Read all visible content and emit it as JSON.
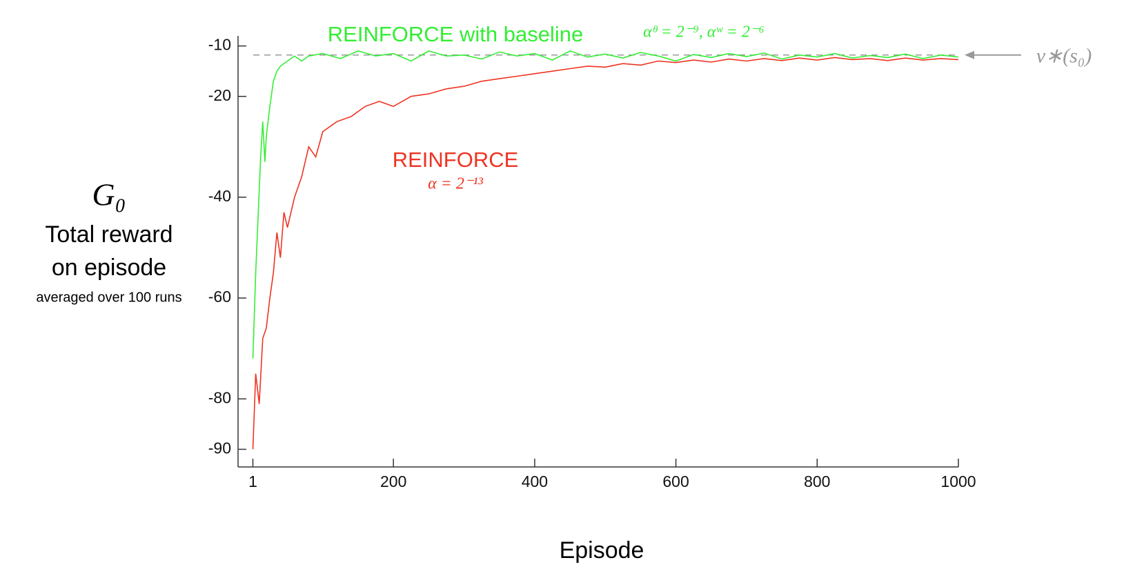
{
  "chart_data": {
    "type": "line",
    "y_label": {
      "symbol": "G₀",
      "lines": [
        "Total reward",
        "on episode"
      ],
      "note": "averaged over 100 runs"
    },
    "x_label": "Episode",
    "xlim": [
      -20,
      1000
    ],
    "ylim": [
      -93.5,
      -8
    ],
    "xticks": [
      1,
      200,
      400,
      600,
      800,
      1000
    ],
    "yticks": [
      -10,
      -20,
      -40,
      -60,
      -80,
      -90
    ],
    "reference_line": {
      "value": -11.8,
      "label": "v∗(s₀)",
      "color": "#999999"
    },
    "series": [
      {
        "name": "REINFORCE with baseline",
        "params": "αᶿ = 2⁻⁹,  αʷ = 2⁻⁶",
        "color": "#33ee33",
        "x": [
          1,
          5,
          8,
          12,
          15,
          18,
          20,
          25,
          30,
          35,
          40,
          50,
          60,
          70,
          80,
          100,
          125,
          150,
          175,
          200,
          225,
          250,
          275,
          300,
          325,
          350,
          375,
          400,
          425,
          450,
          475,
          500,
          525,
          550,
          575,
          600,
          625,
          650,
          675,
          700,
          725,
          750,
          775,
          800,
          825,
          850,
          875,
          900,
          925,
          950,
          975,
          1000
        ],
        "values": [
          -72,
          -55,
          -45,
          -32,
          -25,
          -33,
          -28,
          -22,
          -17,
          -15,
          -14,
          -13,
          -12,
          -13,
          -12,
          -11.5,
          -12.5,
          -11,
          -12,
          -11.5,
          -13,
          -11,
          -12,
          -11.8,
          -12.6,
          -11.2,
          -12,
          -11.5,
          -12.8,
          -11,
          -12.2,
          -11.6,
          -12.4,
          -11.3,
          -12,
          -13,
          -11.7,
          -12.3,
          -11.5,
          -12.1,
          -11.4,
          -12.6,
          -11.8,
          -12.2,
          -11.5,
          -12.4,
          -11.9,
          -12.3,
          -11.6,
          -12.5,
          -11.8,
          -12.2
        ]
      },
      {
        "name": "REINFORCE",
        "params": "α = 2⁻¹³",
        "color": "#ee3322",
        "x": [
          1,
          5,
          10,
          15,
          20,
          25,
          30,
          35,
          40,
          45,
          50,
          60,
          70,
          80,
          90,
          100,
          120,
          140,
          160,
          180,
          200,
          225,
          250,
          275,
          300,
          325,
          350,
          375,
          400,
          425,
          450,
          475,
          500,
          525,
          550,
          575,
          600,
          625,
          650,
          675,
          700,
          725,
          750,
          775,
          800,
          825,
          850,
          875,
          900,
          925,
          950,
          975,
          1000
        ],
        "values": [
          -90,
          -75,
          -81,
          -68,
          -66,
          -60,
          -55,
          -47,
          -52,
          -43,
          -46,
          -40,
          -36,
          -30,
          -32,
          -27,
          -25,
          -24,
          -22,
          -21,
          -22,
          -20,
          -19.5,
          -18.5,
          -18,
          -17,
          -16.5,
          -16,
          -15.5,
          -15,
          -14.5,
          -14,
          -14.2,
          -13.5,
          -13.8,
          -13,
          -13.3,
          -12.8,
          -13.2,
          -12.6,
          -13,
          -12.5,
          -12.9,
          -12.4,
          -12.8,
          -12.3,
          -12.7,
          -12.5,
          -12.9,
          -12.4,
          -12.8,
          -12.5,
          -12.7
        ]
      }
    ]
  }
}
